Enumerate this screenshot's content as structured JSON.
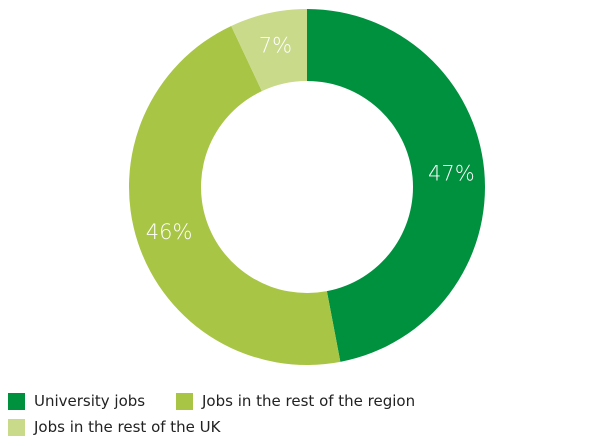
{
  "chart_data": {
    "type": "pie",
    "donut": true,
    "slices": [
      {
        "label": "University jobs",
        "value": 47,
        "display": "47%",
        "color": "#00913f"
      },
      {
        "label": "Jobs in the rest of the region",
        "value": 46,
        "display": "46%",
        "color": "#a8c545"
      },
      {
        "label": "Jobs in the rest of the UK",
        "value": 7,
        "display": "7%",
        "color": "#c9da8a"
      }
    ],
    "legend_position": "bottom-left"
  }
}
